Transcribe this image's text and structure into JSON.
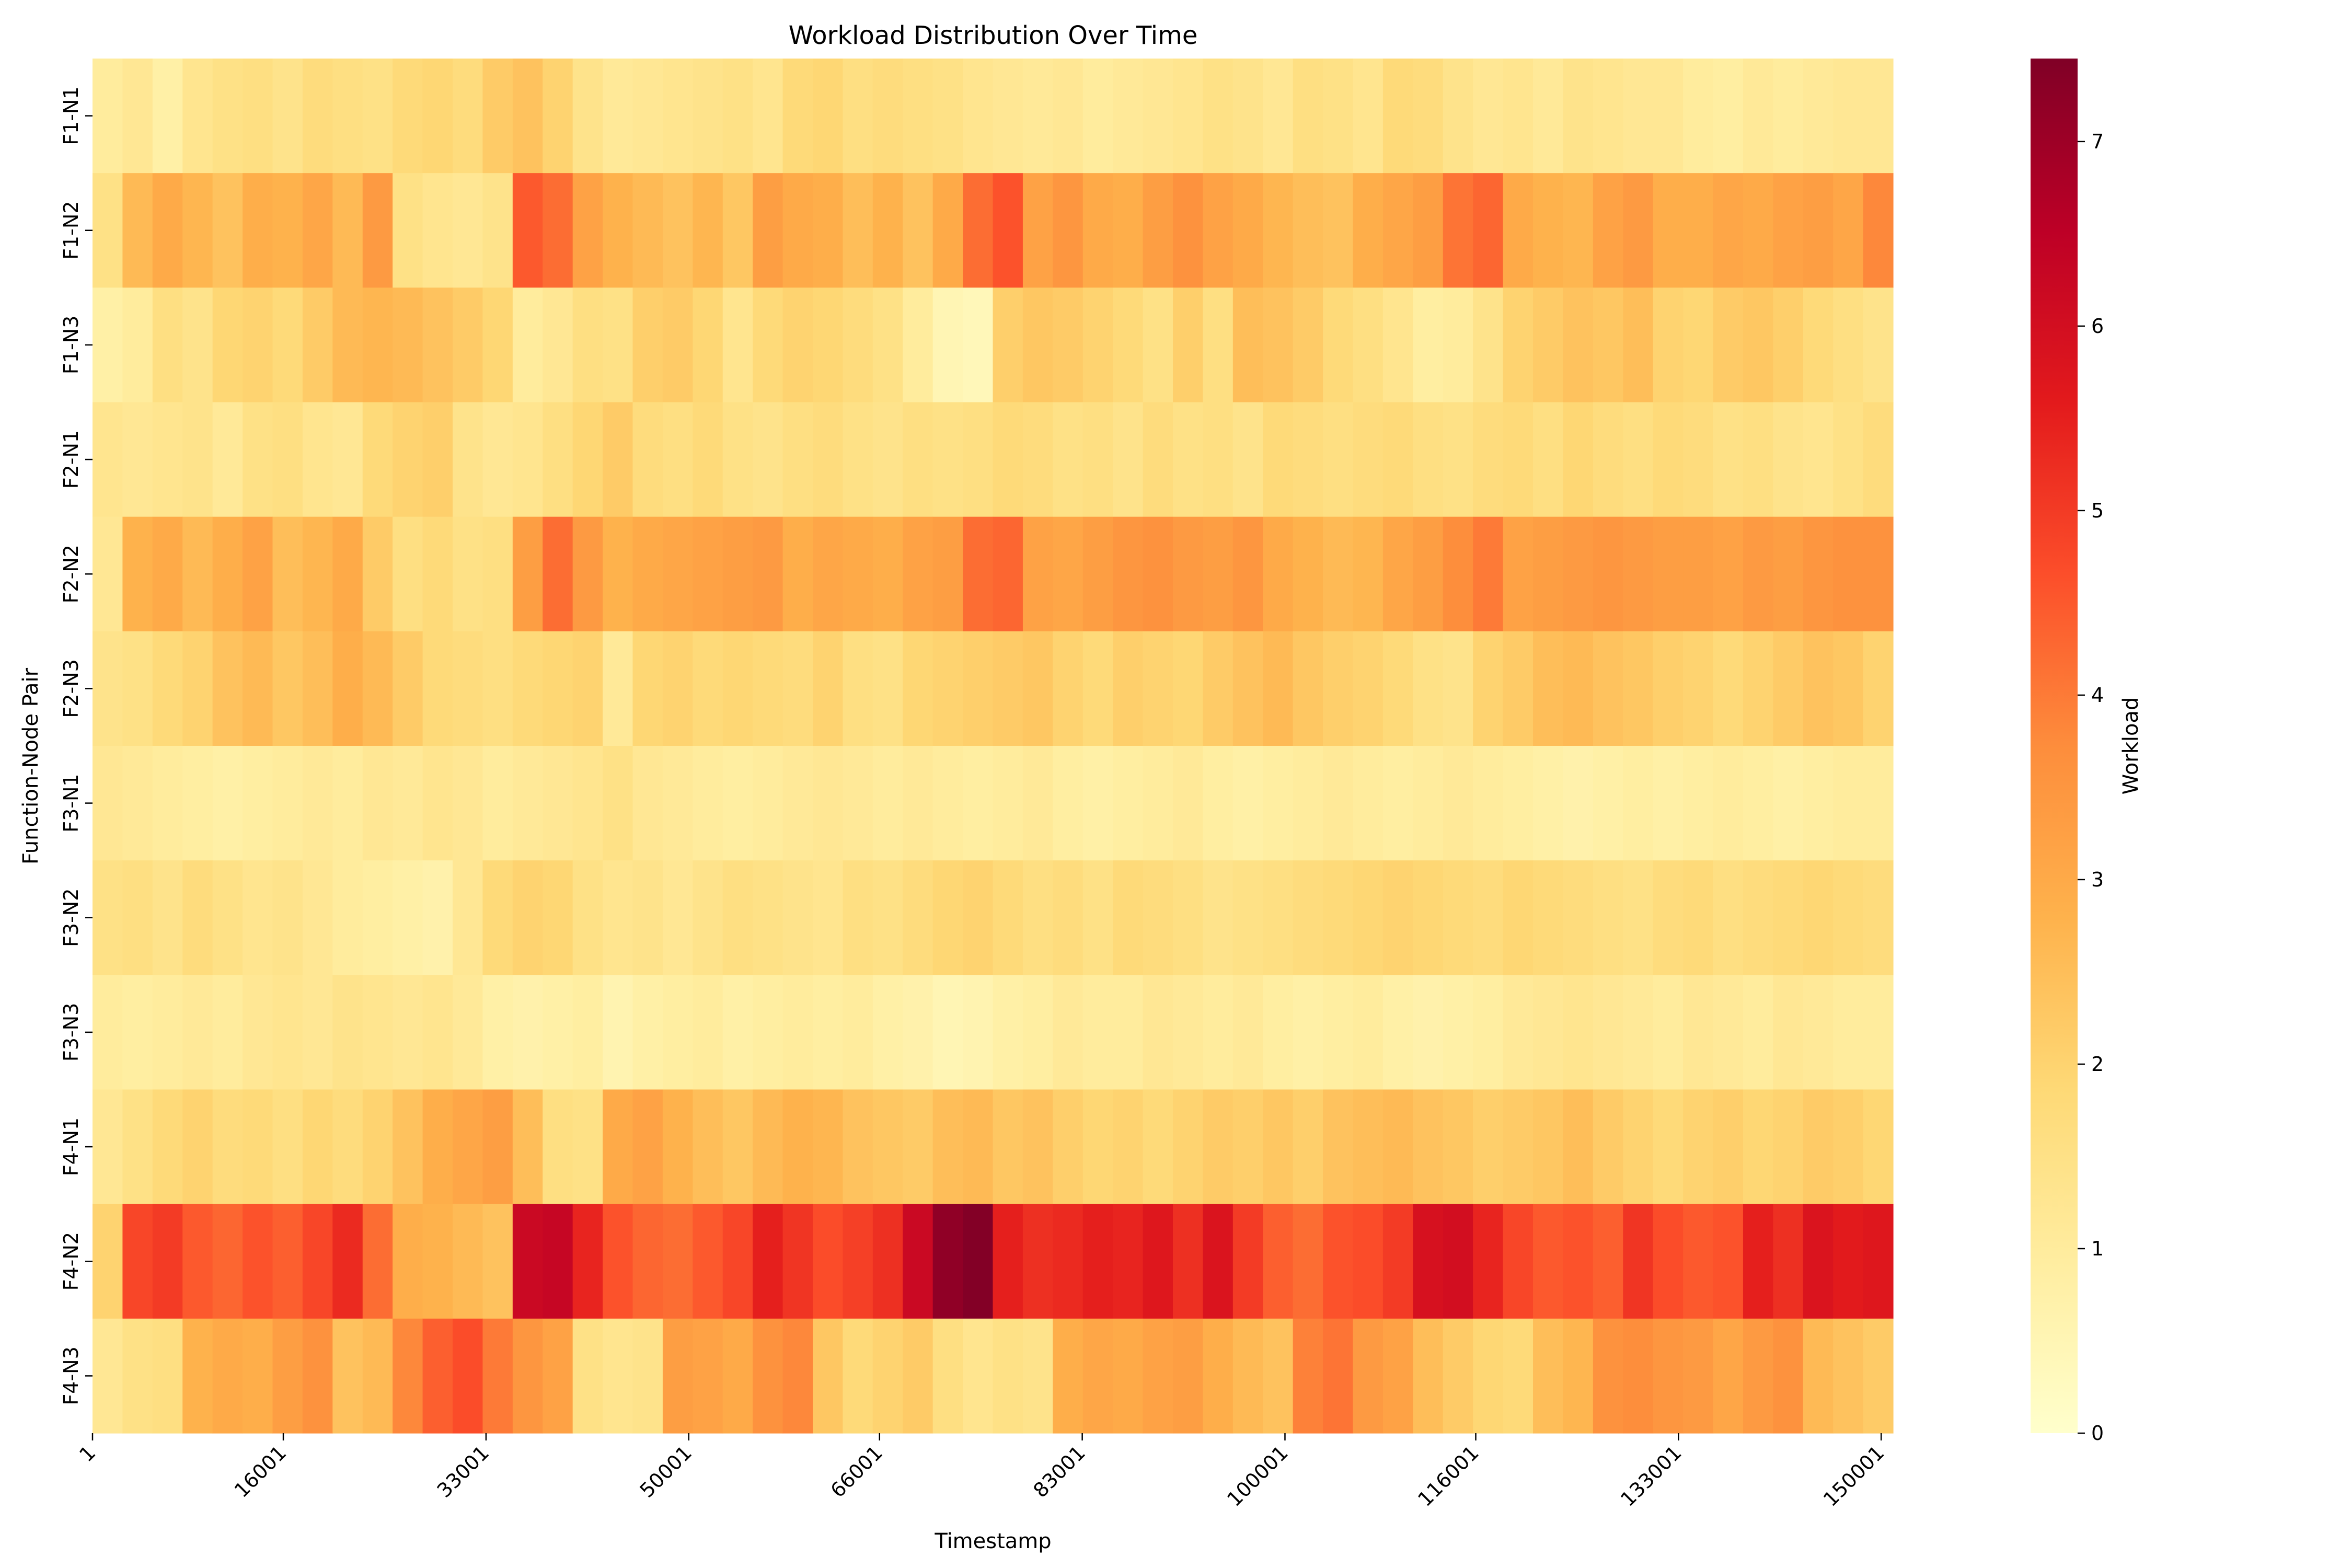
{
  "chart_data": {
    "type": "heatmap",
    "title": "Workload Distribution Over Time",
    "xlabel": "Timestamp",
    "ylabel": "Function-Node Pair",
    "colorbar_label": "Workload",
    "rows": [
      "F1-N1",
      "F1-N2",
      "F1-N3",
      "F2-N1",
      "F2-N2",
      "F2-N3",
      "F3-N1",
      "F3-N2",
      "F3-N3",
      "F4-N1",
      "F4-N2",
      "F4-N3"
    ],
    "x_ticks": [
      "1",
      "16001",
      "33001",
      "50001",
      "66001",
      "83001",
      "100001",
      "116001",
      "133001",
      "150001"
    ],
    "x_range": [
      1,
      151000
    ],
    "zlim": [
      0,
      7.45
    ],
    "colorbar_ticks": [
      "0",
      "1",
      "2",
      "3",
      "4",
      "5",
      "6",
      "7"
    ],
    "colormap": "YlOrRd",
    "grid": false,
    "colorbar_position": "right",
    "values": [
      [
        1.0,
        1.2,
        0.8,
        1.3,
        1.5,
        1.6,
        1.4,
        1.7,
        1.6,
        1.5,
        1.8,
        1.9,
        1.7,
        2.2,
        2.4,
        2.0,
        1.4,
        1.1,
        1.2,
        1.3,
        1.4,
        1.5,
        1.3,
        1.8,
        1.9,
        1.6,
        1.7,
        1.6,
        1.5,
        1.3,
        1.2,
        1.1,
        1.2,
        1.0,
        1.1,
        1.2,
        1.3,
        1.5,
        1.4,
        1.2,
        1.6,
        1.5,
        1.3,
        1.8,
        1.7,
        1.4,
        1.2,
        1.3,
        1.1,
        1.4,
        1.3,
        1.2,
        1.2,
        1.0,
        0.9,
        1.1,
        1.0,
        1.1,
        1.2,
        1.2
      ],
      [
        1.5,
        2.6,
        3.0,
        2.7,
        2.4,
        2.9,
        2.8,
        3.1,
        2.6,
        3.4,
        1.5,
        1.3,
        1.2,
        1.4,
        4.5,
        4.2,
        3.2,
        2.8,
        2.6,
        2.4,
        2.7,
        2.3,
        3.3,
        3.0,
        2.9,
        2.5,
        2.8,
        2.4,
        3.0,
        4.2,
        4.6,
        3.2,
        3.5,
        3.0,
        2.9,
        3.3,
        3.6,
        3.2,
        3.0,
        2.7,
        2.5,
        2.4,
        2.9,
        3.1,
        3.3,
        4.1,
        4.3,
        3.0,
        2.8,
        2.7,
        3.2,
        3.4,
        2.9,
        2.9,
        3.1,
        3.0,
        3.2,
        3.3,
        3.1,
        3.8
      ],
      [
        0.8,
        1.0,
        1.6,
        1.4,
        1.9,
        2.0,
        1.8,
        2.2,
        2.6,
        2.7,
        2.6,
        2.4,
        2.2,
        1.9,
        1.0,
        1.2,
        1.6,
        1.5,
        2.1,
        2.2,
        1.9,
        1.3,
        1.8,
        2.0,
        1.9,
        1.7,
        1.5,
        1.0,
        0.5,
        0.4,
        2.1,
        2.3,
        2.2,
        2.0,
        1.8,
        1.5,
        2.1,
        1.6,
        2.5,
        2.4,
        2.2,
        1.8,
        1.6,
        1.3,
        0.9,
        1.0,
        1.4,
        2.0,
        2.2,
        2.4,
        2.3,
        2.5,
        2.0,
        1.9,
        2.2,
        2.3,
        2.1,
        1.8,
        1.6,
        1.4
      ],
      [
        1.3,
        1.2,
        1.3,
        1.4,
        1.1,
        1.5,
        1.6,
        1.3,
        1.2,
        1.8,
        2.0,
        2.1,
        1.4,
        1.2,
        1.3,
        1.6,
        1.9,
        2.2,
        1.7,
        1.6,
        1.8,
        1.5,
        1.4,
        1.6,
        1.7,
        1.5,
        1.4,
        1.6,
        1.5,
        1.6,
        1.8,
        1.7,
        1.5,
        1.6,
        1.4,
        1.7,
        1.5,
        1.6,
        1.4,
        1.8,
        1.7,
        1.6,
        1.7,
        1.8,
        1.6,
        1.5,
        1.7,
        1.8,
        1.6,
        1.9,
        1.7,
        1.6,
        1.8,
        1.7,
        1.5,
        1.6,
        1.4,
        1.3,
        1.5,
        1.7
      ],
      [
        1.2,
        2.8,
        3.0,
        2.6,
        2.9,
        3.2,
        2.5,
        2.7,
        3.0,
        2.2,
        1.6,
        1.8,
        1.5,
        1.6,
        3.3,
        4.2,
        3.4,
        2.8,
        3.0,
        3.1,
        3.2,
        3.3,
        3.4,
        2.9,
        3.1,
        3.0,
        2.9,
        3.2,
        3.3,
        4.2,
        4.3,
        3.2,
        3.1,
        3.3,
        3.5,
        3.6,
        3.4,
        3.3,
        3.5,
        3.0,
        2.8,
        2.6,
        2.7,
        3.1,
        3.3,
        3.7,
        4.0,
        3.2,
        3.3,
        3.4,
        3.5,
        3.4,
        3.3,
        3.3,
        3.2,
        3.4,
        3.3,
        3.5,
        3.6,
        3.6
      ],
      [
        1.4,
        1.5,
        1.8,
        2.0,
        2.4,
        2.6,
        2.3,
        2.5,
        2.9,
        2.6,
        2.2,
        1.8,
        1.7,
        1.6,
        1.8,
        1.9,
        2.0,
        1.1,
        1.9,
        2.0,
        1.8,
        1.9,
        1.8,
        1.7,
        2.0,
        1.6,
        1.5,
        1.9,
        2.0,
        2.1,
        2.2,
        2.3,
        2.0,
        1.8,
        2.1,
        2.0,
        1.9,
        2.2,
        2.4,
        2.6,
        2.3,
        2.1,
        2.0,
        1.8,
        1.5,
        1.4,
        2.0,
        2.2,
        2.5,
        2.6,
        2.4,
        2.3,
        2.1,
        2.0,
        1.8,
        2.0,
        2.2,
        2.4,
        2.3,
        2.0
      ],
      [
        1.2,
        1.1,
        1.0,
        0.9,
        0.8,
        0.9,
        1.0,
        1.1,
        1.0,
        1.2,
        1.1,
        1.3,
        1.2,
        1.0,
        1.1,
        1.2,
        1.3,
        1.5,
        1.2,
        1.1,
        1.0,
        0.9,
        1.0,
        1.1,
        1.2,
        1.1,
        1.0,
        1.1,
        1.0,
        0.9,
        1.0,
        1.1,
        0.9,
        0.8,
        0.9,
        1.0,
        1.1,
        0.9,
        0.8,
        0.9,
        1.0,
        1.1,
        1.0,
        0.9,
        1.0,
        1.1,
        1.0,
        0.9,
        0.8,
        0.7,
        0.8,
        0.9,
        0.8,
        0.9,
        1.0,
        0.9,
        0.8,
        0.9,
        1.0,
        1.0
      ],
      [
        1.5,
        1.6,
        1.4,
        1.7,
        1.5,
        1.3,
        1.4,
        1.2,
        1.0,
        0.9,
        0.8,
        0.7,
        1.2,
        1.8,
        2.0,
        1.9,
        1.5,
        1.3,
        1.4,
        1.2,
        1.4,
        1.6,
        1.5,
        1.4,
        1.3,
        1.6,
        1.5,
        1.7,
        1.9,
        2.0,
        1.8,
        1.6,
        1.7,
        1.5,
        1.8,
        1.7,
        1.6,
        1.4,
        1.5,
        1.6,
        1.7,
        1.8,
        1.9,
        2.0,
        1.9,
        1.8,
        1.7,
        1.9,
        1.8,
        1.7,
        1.6,
        1.5,
        1.7,
        1.8,
        1.6,
        1.7,
        1.8,
        1.9,
        1.8,
        1.7
      ],
      [
        1.0,
        0.9,
        1.0,
        1.1,
        1.0,
        1.2,
        1.3,
        1.2,
        1.4,
        1.3,
        1.2,
        1.3,
        1.1,
        0.8,
        0.7,
        0.8,
        0.9,
        0.6,
        0.8,
        0.9,
        1.0,
        0.8,
        0.9,
        1.0,
        0.9,
        1.0,
        0.8,
        0.7,
        0.5,
        0.6,
        0.8,
        0.9,
        1.1,
        1.0,
        1.0,
        1.2,
        1.1,
        1.0,
        1.1,
        0.9,
        0.8,
        0.9,
        1.0,
        0.8,
        0.7,
        0.8,
        0.9,
        1.1,
        1.2,
        1.3,
        1.2,
        1.1,
        1.0,
        1.2,
        1.1,
        1.0,
        1.2,
        1.1,
        1.0,
        1.0
      ],
      [
        1.2,
        1.5,
        1.8,
        2.0,
        1.7,
        1.8,
        1.6,
        1.9,
        1.7,
        2.0,
        2.4,
        2.9,
        3.1,
        3.3,
        2.5,
        1.6,
        1.5,
        3.0,
        3.2,
        2.8,
        2.5,
        2.3,
        2.6,
        2.8,
        2.7,
        2.4,
        2.3,
        2.2,
        2.5,
        2.6,
        2.3,
        2.4,
        2.1,
        1.9,
        2.0,
        1.8,
        2.0,
        2.2,
        2.1,
        2.3,
        2.1,
        2.4,
        2.5,
        2.6,
        2.4,
        2.3,
        2.1,
        2.2,
        2.3,
        2.5,
        2.2,
        2.0,
        1.8,
        2.0,
        2.1,
        1.9,
        2.0,
        2.2,
        2.1,
        1.9
      ],
      [
        2.0,
        4.8,
        5.0,
        4.5,
        4.3,
        4.6,
        4.4,
        4.8,
        5.3,
        4.2,
        2.9,
        2.8,
        2.6,
        2.4,
        6.2,
        6.3,
        5.4,
        4.6,
        4.3,
        4.2,
        4.5,
        4.8,
        5.5,
        5.1,
        4.7,
        4.9,
        5.2,
        6.2,
        7.2,
        7.4,
        5.5,
        5.2,
        5.3,
        5.5,
        5.4,
        5.7,
        5.2,
        5.8,
        5.0,
        4.4,
        4.2,
        4.6,
        4.7,
        5.0,
        5.9,
        6.0,
        5.4,
        4.8,
        4.5,
        4.6,
        4.4,
        5.1,
        4.7,
        4.5,
        4.6,
        5.5,
        5.2,
        5.8,
        5.6,
        5.7
      ],
      [
        1.2,
        1.5,
        1.6,
        2.8,
        3.0,
        2.9,
        3.3,
        3.6,
        2.4,
        2.6,
        3.8,
        4.4,
        4.7,
        4.0,
        3.5,
        3.2,
        1.5,
        1.3,
        1.4,
        3.3,
        3.2,
        3.0,
        3.6,
        3.8,
        2.3,
        1.8,
        2.0,
        2.2,
        1.6,
        1.3,
        1.5,
        1.4,
        2.9,
        3.1,
        3.0,
        3.2,
        3.3,
        2.9,
        2.6,
        2.4,
        3.9,
        4.1,
        3.4,
        3.2,
        2.5,
        2.2,
        1.9,
        1.8,
        2.5,
        2.7,
        3.6,
        3.7,
        3.5,
        3.4,
        3.1,
        3.4,
        3.6,
        2.6,
        2.4,
        2.2
      ]
    ]
  }
}
